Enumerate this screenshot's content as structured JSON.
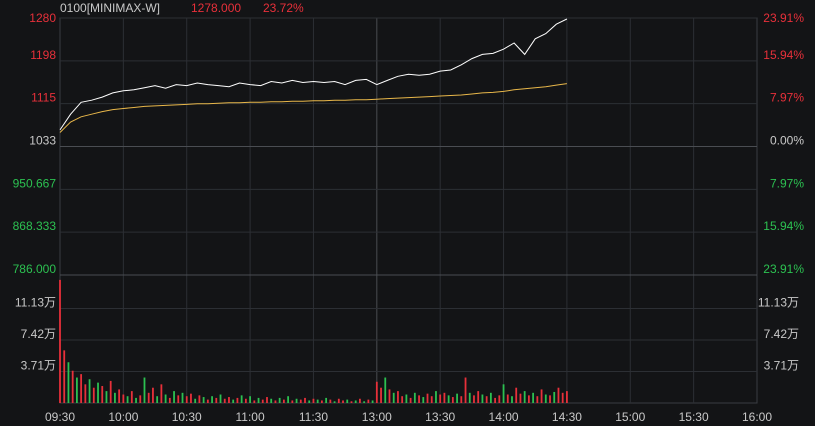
{
  "header": {
    "symbol": "0100[MINIMAX-W]",
    "price": "1278.000",
    "change_pct": "23.72%"
  },
  "colors": {
    "background": "#131416",
    "grid": "#2c2f34",
    "axis_frame": "#3a3d42",
    "price_line": "#ffffff",
    "avg_line": "#e8b74a",
    "up": "#e8303a",
    "down": "#2cc151",
    "neutral": "#c9c9c9"
  },
  "chart_data": {
    "type": "line",
    "title": "",
    "xlabel": "",
    "ylabel": "",
    "x_ticks": [
      "09:30",
      "10:00",
      "10:30",
      "11:00",
      "11:30",
      "13:00",
      "13:30",
      "14:00",
      "14:30",
      "15:00",
      "15:30",
      "16:00"
    ],
    "price_axis": {
      "left_labels": [
        "1280",
        "1198",
        "1115",
        "1033",
        "950.667",
        "868.333",
        "786.000"
      ],
      "right_labels": [
        "23.91%",
        "15.94%",
        "7.97%",
        "0.00%",
        "7.97%",
        "15.94%",
        "23.91%"
      ],
      "ylim": [
        786.0,
        1280.0
      ],
      "prev_close": 1033
    },
    "volume_axis": {
      "left_labels": [
        "11.13万",
        "7.42万",
        "3.71万"
      ],
      "right_labels": [
        "11.13万",
        "7.42万",
        "3.71万"
      ],
      "ylim": [
        0,
        148400
      ]
    },
    "series": [
      {
        "x": [
          "09:30",
          "09:35",
          "09:40",
          "09:45",
          "09:50",
          "09:55",
          "10:00",
          "10:05",
          "10:10",
          "10:15",
          "10:20",
          "10:25",
          "10:30",
          "10:35",
          "10:40",
          "10:45",
          "10:50",
          "10:55",
          "11:00",
          "11:05",
          "11:10",
          "11:15",
          "11:20",
          "11:25",
          "11:30",
          "11:35",
          "11:40",
          "11:45",
          "11:50",
          "11:55",
          "13:00",
          "13:05",
          "13:10",
          "13:15",
          "13:20",
          "13:25",
          "13:30",
          "13:35",
          "13:40",
          "13:45",
          "13:50",
          "13:55",
          "14:00",
          "14:05",
          "14:10",
          "14:15",
          "14:20",
          "14:25",
          "14:30"
        ],
        "values": [
          1065,
          1095,
          1118,
          1122,
          1128,
          1136,
          1140,
          1142,
          1146,
          1150,
          1145,
          1152,
          1150,
          1155,
          1152,
          1150,
          1148,
          1155,
          1152,
          1150,
          1158,
          1155,
          1160,
          1156,
          1158,
          1156,
          1158,
          1152,
          1160,
          1162,
          1152,
          1160,
          1168,
          1172,
          1170,
          1172,
          1178,
          1180,
          1190,
          1202,
          1210,
          1212,
          1220,
          1232,
          1210,
          1240,
          1250,
          1268,
          1278
        ]
      },
      {
        "x": [
          "09:30",
          "09:35",
          "09:40",
          "09:45",
          "09:50",
          "09:55",
          "10:00",
          "10:05",
          "10:10",
          "10:15",
          "10:20",
          "10:25",
          "10:30",
          "10:35",
          "10:40",
          "10:45",
          "10:50",
          "10:55",
          "11:00",
          "11:05",
          "11:10",
          "11:15",
          "11:20",
          "11:25",
          "11:30",
          "11:35",
          "11:40",
          "11:45",
          "11:50",
          "11:55",
          "13:00",
          "13:05",
          "13:10",
          "13:15",
          "13:20",
          "13:25",
          "13:30",
          "13:35",
          "13:40",
          "13:45",
          "13:50",
          "13:55",
          "14:00",
          "14:05",
          "14:10",
          "14:15",
          "14:20",
          "14:25",
          "14:30"
        ],
        "values": [
          1060,
          1080,
          1090,
          1095,
          1100,
          1104,
          1106,
          1108,
          1110,
          1111,
          1112,
          1113,
          1114,
          1115,
          1115,
          1116,
          1117,
          1117,
          1118,
          1118,
          1119,
          1119,
          1120,
          1120,
          1121,
          1121,
          1122,
          1122,
          1123,
          1123,
          1124,
          1125,
          1126,
          1127,
          1128,
          1129,
          1130,
          1131,
          1132,
          1134,
          1136,
          1137,
          1139,
          1142,
          1144,
          1146,
          1148,
          1151,
          1154
        ]
      }
    ],
    "volume": {
      "x": [
        "09:30",
        "09:32",
        "09:34",
        "09:36",
        "09:38",
        "09:40",
        "09:42",
        "09:44",
        "09:46",
        "09:48",
        "09:50",
        "09:52",
        "09:54",
        "09:56",
        "09:58",
        "10:00",
        "10:02",
        "10:04",
        "10:06",
        "10:08",
        "10:10",
        "10:12",
        "10:14",
        "10:16",
        "10:18",
        "10:20",
        "10:22",
        "10:24",
        "10:26",
        "10:28",
        "10:30",
        "10:32",
        "10:34",
        "10:36",
        "10:38",
        "10:40",
        "10:42",
        "10:44",
        "10:46",
        "10:48",
        "10:50",
        "10:52",
        "10:54",
        "10:56",
        "10:58",
        "11:00",
        "11:02",
        "11:04",
        "11:06",
        "11:08",
        "11:10",
        "11:12",
        "11:14",
        "11:16",
        "11:18",
        "11:20",
        "11:22",
        "11:24",
        "11:26",
        "11:28",
        "11:30",
        "11:32",
        "11:34",
        "11:36",
        "11:38",
        "11:40",
        "11:42",
        "11:44",
        "11:46",
        "11:48",
        "11:50",
        "11:52",
        "11:54",
        "11:56",
        "11:58",
        "13:00",
        "13:02",
        "13:04",
        "13:06",
        "13:08",
        "13:10",
        "13:12",
        "13:14",
        "13:16",
        "13:18",
        "13:20",
        "13:22",
        "13:24",
        "13:26",
        "13:28",
        "13:30",
        "13:32",
        "13:34",
        "13:36",
        "13:38",
        "13:40",
        "13:42",
        "13:44",
        "13:46",
        "13:48",
        "13:50",
        "13:52",
        "13:54",
        "13:56",
        "13:58",
        "14:00",
        "14:02",
        "14:04",
        "14:06",
        "14:08",
        "14:10",
        "14:12",
        "14:14",
        "14:16",
        "14:18",
        "14:20",
        "14:22",
        "14:24",
        "14:26",
        "14:28",
        "14:30"
      ],
      "values": [
        145000,
        62000,
        48000,
        38000,
        30000,
        34000,
        22000,
        28000,
        18000,
        24000,
        20000,
        14000,
        26000,
        12000,
        16000,
        10000,
        8000,
        14000,
        6000,
        9000,
        30000,
        12000,
        18000,
        8000,
        22000,
        10000,
        6000,
        14000,
        9000,
        12000,
        8000,
        11000,
        5000,
        9000,
        7000,
        4000,
        8000,
        6000,
        10000,
        5000,
        7000,
        4000,
        6000,
        9000,
        5000,
        8000,
        3000,
        6000,
        4000,
        7000,
        5000,
        3000,
        6000,
        4000,
        8000,
        3000,
        5000,
        4000,
        6000,
        3000,
        5000,
        4000,
        3000,
        6000,
        4000,
        2000,
        5000,
        3000,
        4000,
        2000,
        3000,
        5000,
        2000,
        4000,
        3000,
        25000,
        18000,
        30000,
        16000,
        12000,
        14000,
        8000,
        10000,
        6000,
        12000,
        9000,
        7000,
        11000,
        8000,
        14000,
        10000,
        12000,
        9000,
        7000,
        11000,
        8000,
        30000,
        12000,
        9000,
        14000,
        10000,
        8000,
        12000,
        6000,
        9000,
        22000,
        10000,
        8000,
        18000,
        11000,
        14000,
        9000,
        12000,
        8000,
        16000,
        10000,
        9000,
        13000,
        18000,
        12000,
        14000
      ],
      "directions": [
        "up",
        "up",
        "down",
        "up",
        "down",
        "up",
        "up",
        "down",
        "up",
        "down",
        "up",
        "down",
        "up",
        "down",
        "up",
        "up",
        "down",
        "up",
        "down",
        "up",
        "down",
        "up",
        "up",
        "down",
        "up",
        "down",
        "up",
        "down",
        "up",
        "down",
        "up",
        "up",
        "down",
        "up",
        "down",
        "up",
        "down",
        "up",
        "down",
        "up",
        "up",
        "down",
        "up",
        "down",
        "up",
        "down",
        "up",
        "down",
        "up",
        "up",
        "down",
        "up",
        "down",
        "up",
        "down",
        "up",
        "down",
        "up",
        "up",
        "down",
        "up",
        "down",
        "up",
        "down",
        "up",
        "down",
        "up",
        "up",
        "down",
        "up",
        "down",
        "up",
        "down",
        "up",
        "down",
        "up",
        "up",
        "down",
        "up",
        "down",
        "up",
        "up",
        "down",
        "up",
        "down",
        "up",
        "down",
        "up",
        "up",
        "down",
        "up",
        "up",
        "down",
        "up",
        "down",
        "up",
        "up",
        "down",
        "up",
        "up",
        "down",
        "up",
        "down",
        "up",
        "up",
        "down",
        "up",
        "down",
        "up",
        "up",
        "down",
        "up",
        "down",
        "up",
        "up",
        "down",
        "up",
        "down",
        "up",
        "up",
        "up"
      ]
    }
  }
}
